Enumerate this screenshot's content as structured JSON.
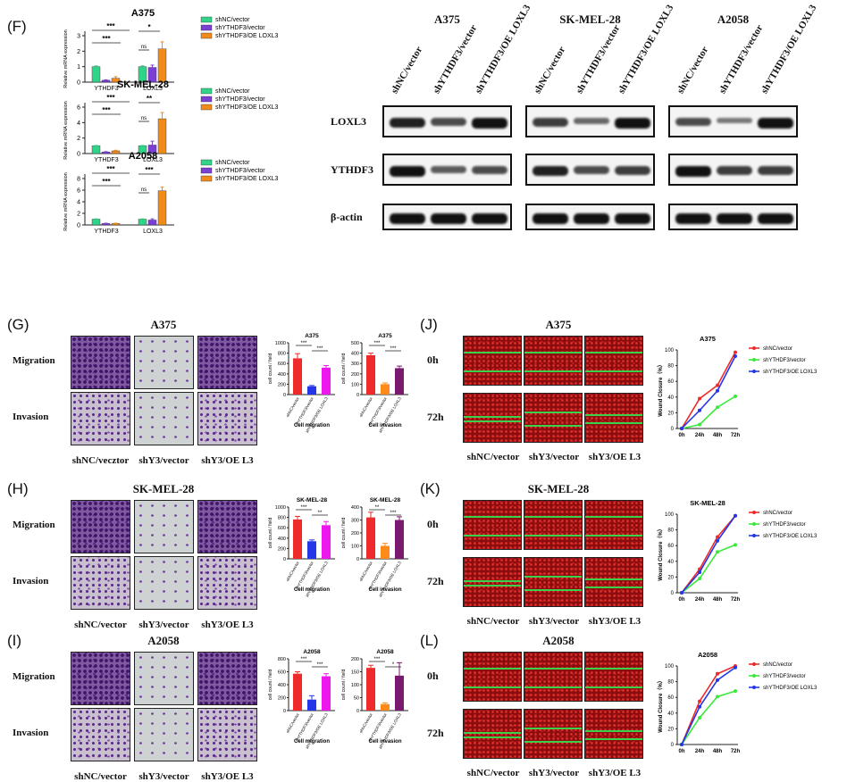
{
  "F": {
    "letter": "(F)",
    "charts": [
      {
        "title": "A375",
        "ylabel": "Relative mRNA expression",
        "yticks": [
          "0",
          "1",
          "2",
          "3"
        ],
        "ymax": 3,
        "groups": [
          "YTHDF3",
          "LOXL3"
        ],
        "values": [
          [
            1.0,
            0.12,
            0.25
          ],
          [
            1.0,
            0.95,
            2.15
          ]
        ],
        "errors": [
          [
            0.05,
            0.03,
            0.1
          ],
          [
            0.05,
            0.15,
            0.45
          ]
        ],
        "sig": [
          "***",
          "***",
          "ns",
          "*"
        ]
      },
      {
        "title": "SK-MEL-28",
        "ylabel": "Relative mRNA expression",
        "yticks": [
          "0",
          "2",
          "4",
          "6"
        ],
        "ymax": 6,
        "groups": [
          "YTHDF3",
          "LOXL3"
        ],
        "values": [
          [
            1.0,
            0.2,
            0.35
          ],
          [
            1.0,
            1.1,
            4.5
          ]
        ],
        "errors": [
          [
            0.05,
            0.05,
            0.08
          ],
          [
            0.05,
            0.5,
            0.8
          ]
        ],
        "sig": [
          "***",
          "***",
          "ns",
          "**"
        ]
      },
      {
        "title": "A2058",
        "ylabel": "Relative mRNA expression",
        "yticks": [
          "0",
          "2",
          "4",
          "6",
          "8"
        ],
        "ymax": 8,
        "groups": [
          "YTHDF3",
          "LOXL3"
        ],
        "values": [
          [
            1.0,
            0.25,
            0.25
          ],
          [
            1.0,
            0.85,
            5.9
          ]
        ],
        "errors": [
          [
            0.05,
            0.05,
            0.05
          ],
          [
            0.05,
            0.2,
            0.6
          ]
        ],
        "sig": [
          "***",
          "***",
          "ns",
          "***"
        ]
      }
    ],
    "legend": [
      "shNC/vector",
      "shYTHDF3/vector",
      "shYTHDF3/OE LOXL3"
    ]
  },
  "colors": {
    "c1": "#2fd489",
    "c2": "#7b3fd6",
    "c3": "#f08a19",
    "red": "#ee2a2a",
    "blue": "#2437e8",
    "magenta": "#ee18ee",
    "purple": "#7a1a6e",
    "orange": "#ff8a1a",
    "green": "#3ce83c"
  },
  "blot": {
    "cell_lines": [
      "A375",
      "SK-MEL-28",
      "A2058"
    ],
    "lanes": [
      "shNC/vector",
      "shYTHDF3/vector",
      "shYTHDF3/OE LOXL3"
    ],
    "rows": [
      "LOXL3",
      "YTHDF3",
      "β-actin"
    ]
  },
  "transwell": {
    "rows": [
      "Migration",
      "Invasion"
    ],
    "cols": [
      "shNC/vecztor",
      "shY3/vector",
      "shY3/OE L3"
    ],
    "cols_b": [
      "shNC/vector",
      "shY3/vector",
      "shY3/OE L3"
    ],
    "panels": [
      {
        "letter": "(G)",
        "title": "A375",
        "mig": {
          "title": "A375",
          "yticks": [
            "0",
            "200",
            "400",
            "600",
            "800",
            "1000"
          ],
          "ymax": 1000,
          "values": [
            700,
            160,
            520
          ],
          "errors": [
            90,
            15,
            40
          ],
          "sig": [
            "***",
            "***"
          ]
        },
        "inv": {
          "title": "A375",
          "yticks": [
            "0",
            "100",
            "200",
            "300",
            "400",
            "500"
          ],
          "ymax": 500,
          "values": [
            380,
            100,
            255
          ],
          "errors": [
            20,
            12,
            20
          ],
          "sig": [
            "***",
            "***"
          ]
        }
      },
      {
        "letter": "(H)",
        "title": "SK-MEL-28",
        "mig": {
          "title": "SK-MEL-28",
          "yticks": [
            "0",
            "200",
            "400",
            "600",
            "800",
            "1000"
          ],
          "ymax": 1000,
          "values": [
            760,
            340,
            650
          ],
          "errors": [
            60,
            25,
            70
          ],
          "sig": [
            "***",
            "**"
          ]
        },
        "inv": {
          "title": "SK-MEL-28",
          "yticks": [
            "0",
            "100",
            "200",
            "300",
            "400"
          ],
          "ymax": 400,
          "values": [
            320,
            100,
            300
          ],
          "errors": [
            40,
            20,
            25
          ],
          "sig": [
            "**",
            "***"
          ]
        }
      },
      {
        "letter": "(I)",
        "title": "A2058",
        "mig": {
          "title": "A2058",
          "yticks": [
            "0",
            "200",
            "400",
            "600",
            "800"
          ],
          "ymax": 800,
          "values": [
            570,
            170,
            530
          ],
          "errors": [
            30,
            60,
            40
          ],
          "sig": [
            "***",
            "***"
          ]
        },
        "inv": {
          "title": "A2058",
          "yticks": [
            "0",
            "50",
            "100",
            "150",
            "200"
          ],
          "ymax": 200,
          "values": [
            165,
            25,
            135
          ],
          "errors": [
            10,
            5,
            50
          ],
          "sig": [
            "***",
            "*"
          ]
        }
      }
    ],
    "ylabel": "cell count / field",
    "xmig": "Cell migration",
    "xinv": "Cell invasion",
    "barnames": [
      "shNC/vector",
      "shYTHDF3/vector",
      "shYTHDF3/OE LOXL3"
    ]
  },
  "wound": {
    "rows": [
      "0h",
      "72h"
    ],
    "cols": [
      "shNC/vector",
      "shY3/vector",
      "shY3/OE L3"
    ],
    "ylabel": "Wound Closure（%）",
    "xticks": [
      "0h",
      "24h",
      "48h",
      "72h"
    ],
    "legend": [
      "shNC/vector",
      "shYTHDF3/vector",
      "shYTHDF3/OE LOXL3"
    ],
    "panels": [
      {
        "letter": "(J)",
        "title": "A375",
        "chart_title": "A375",
        "series": [
          [
            0,
            38,
            55,
            97
          ],
          [
            0,
            5,
            27,
            41
          ],
          [
            0,
            23,
            48,
            92
          ]
        ],
        "yticks": [
          "0",
          "20",
          "40",
          "60",
          "80",
          "100"
        ]
      },
      {
        "letter": "(K)",
        "title": "SK-MEL-28",
        "chart_title": "SK-MEL-28",
        "series": [
          [
            0,
            30,
            71,
            98
          ],
          [
            0,
            18,
            52,
            61
          ],
          [
            0,
            26,
            66,
            98
          ]
        ],
        "yticks": [
          "0",
          "20",
          "40",
          "60",
          "80",
          "100"
        ]
      },
      {
        "letter": "(L)",
        "title": "A2058",
        "chart_title": "A2058",
        "series": [
          [
            0,
            55,
            90,
            100
          ],
          [
            0,
            34,
            61,
            68
          ],
          [
            0,
            48,
            82,
            98
          ]
        ],
        "yticks": [
          "0",
          "20",
          "40",
          "60",
          "80",
          "100"
        ]
      }
    ]
  },
  "chart_data": [
    {
      "type": "bar",
      "title": "A375",
      "categories": [
        "YTHDF3",
        "LOXL3"
      ],
      "ylabel": "Relative mRNA expression",
      "ylim": [
        0,
        3
      ],
      "series": [
        {
          "name": "shNC/vector",
          "values": [
            1.0,
            1.0
          ]
        },
        {
          "name": "shYTHDF3/vector",
          "values": [
            0.12,
            0.95
          ]
        },
        {
          "name": "shYTHDF3/OE LOXL3",
          "values": [
            0.25,
            2.15
          ]
        }
      ]
    },
    {
      "type": "bar",
      "title": "SK-MEL-28",
      "categories": [
        "YTHDF3",
        "LOXL3"
      ],
      "ylabel": "Relative mRNA expression",
      "ylim": [
        0,
        6
      ],
      "series": [
        {
          "name": "shNC/vector",
          "values": [
            1.0,
            1.0
          ]
        },
        {
          "name": "shYTHDF3/vector",
          "values": [
            0.2,
            1.1
          ]
        },
        {
          "name": "shYTHDF3/OE LOXL3",
          "values": [
            0.35,
            4.5
          ]
        }
      ]
    },
    {
      "type": "bar",
      "title": "A2058",
      "categories": [
        "YTHDF3",
        "LOXL3"
      ],
      "ylabel": "Relative mRNA expression",
      "ylim": [
        0,
        8
      ],
      "series": [
        {
          "name": "shNC/vector",
          "values": [
            1.0,
            1.0
          ]
        },
        {
          "name": "shYTHDF3/vector",
          "values": [
            0.25,
            0.85
          ]
        },
        {
          "name": "shYTHDF3/OE LOXL3",
          "values": [
            0.25,
            5.9
          ]
        }
      ]
    },
    {
      "type": "line",
      "title": "A375",
      "x": [
        "0h",
        "24h",
        "48h",
        "72h"
      ],
      "ylabel": "Wound Closure（%）",
      "ylim": [
        0,
        100
      ],
      "series": [
        {
          "name": "shNC/vector",
          "values": [
            0,
            38,
            55,
            97
          ]
        },
        {
          "name": "shYTHDF3/vector",
          "values": [
            0,
            5,
            27,
            41
          ]
        },
        {
          "name": "shYTHDF3/OE LOXL3",
          "values": [
            0,
            23,
            48,
            92
          ]
        }
      ]
    },
    {
      "type": "line",
      "title": "SK-MEL-28",
      "x": [
        "0h",
        "24h",
        "48h",
        "72h"
      ],
      "ylabel": "Wound Closure（%）",
      "ylim": [
        0,
        100
      ],
      "series": [
        {
          "name": "shNC/vector",
          "values": [
            0,
            30,
            71,
            98
          ]
        },
        {
          "name": "shYTHDF3/vector",
          "values": [
            0,
            18,
            52,
            61
          ]
        },
        {
          "name": "shYTHDF3/OE LOXL3",
          "values": [
            0,
            26,
            66,
            98
          ]
        }
      ]
    },
    {
      "type": "line",
      "title": "A2058",
      "x": [
        "0h",
        "24h",
        "48h",
        "72h"
      ],
      "ylabel": "Wound Closure（%）",
      "ylim": [
        0,
        100
      ],
      "series": [
        {
          "name": "shNC/vector",
          "values": [
            0,
            55,
            90,
            100
          ]
        },
        {
          "name": "shYTHDF3/vector",
          "values": [
            0,
            34,
            61,
            68
          ]
        },
        {
          "name": "shYTHDF3/OE LOXL3",
          "values": [
            0,
            48,
            82,
            98
          ]
        }
      ]
    }
  ]
}
